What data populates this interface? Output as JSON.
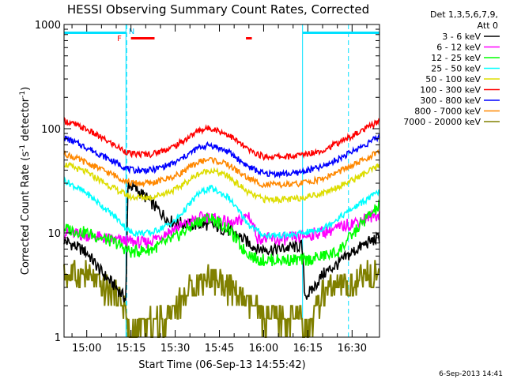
{
  "chart_data": {
    "type": "line",
    "title": "HESSI Observing Summary Count Rates, Corrected",
    "xlabel": "Start Time (06-Sep-13 14:55:42)",
    "ylabel_main": "Corrected Count Rate (s",
    "ylabel_sup1": "-1",
    "ylabel_mid": " detector",
    "ylabel_sup2": "-1",
    "ylabel_end": ")",
    "xlim_minutes": [
      -7.7,
      99.3
    ],
    "ylim": [
      1,
      1000
    ],
    "y_scale": "log",
    "x_ticks": [
      {
        "minute": 0,
        "label": "15:00"
      },
      {
        "minute": 15,
        "label": "15:15"
      },
      {
        "minute": 30,
        "label": "15:30"
      },
      {
        "minute": 45,
        "label": "15:45"
      },
      {
        "minute": 60,
        "label": "16:00"
      },
      {
        "minute": 75,
        "label": "16:15"
      },
      {
        "minute": 90,
        "label": "16:30"
      }
    ],
    "y_ticks": [
      {
        "value": 1,
        "label": "1"
      },
      {
        "value": 10,
        "label": "10"
      },
      {
        "value": 100,
        "label": "100"
      },
      {
        "value": 1000,
        "label": "1000"
      }
    ],
    "legend_header": [
      "Det 1,3,5,6,7,9,",
      "Att 0"
    ],
    "legend_position": "right",
    "series": [
      {
        "name": "3 - 6 keV",
        "color": "#000000",
        "x": [
          -7.7,
          0,
          5,
          10,
          13.3,
          14,
          20,
          28,
          35,
          42,
          50,
          58,
          65,
          73,
          74,
          76,
          80,
          85,
          90,
          95,
          99.3
        ],
        "y": [
          8.5,
          6.5,
          4.2,
          3.0,
          2.3,
          30,
          22,
          13,
          12,
          12,
          10,
          7,
          7,
          7.5,
          2.5,
          2.7,
          4,
          5,
          6.5,
          8,
          9
        ]
      },
      {
        "name": "6 - 12 keV",
        "color": "#ff00ff",
        "x": [
          -7.7,
          0,
          10,
          20,
          30,
          40,
          50,
          55,
          58,
          65,
          75,
          85,
          95,
          99.3
        ],
        "y": [
          10,
          9.5,
          8.5,
          8,
          11,
          14.5,
          12,
          15,
          9,
          8.5,
          9.5,
          11,
          14,
          15
        ]
      },
      {
        "name": "12 - 25 keV",
        "color": "#00ff00",
        "x": [
          -7.7,
          0,
          10,
          15,
          22,
          30,
          38,
          42,
          48,
          53,
          58,
          65,
          75,
          85,
          95,
          99.3
        ],
        "y": [
          11,
          10,
          8,
          6.5,
          7,
          9,
          13,
          14,
          11,
          7,
          5.5,
          5.5,
          5.5,
          6.5,
          14,
          18
        ]
      },
      {
        "name": "25 - 50 keV",
        "color": "#00ffff",
        "x": [
          -7.7,
          0,
          10,
          15,
          22,
          30,
          38,
          42,
          48,
          55,
          60,
          70,
          80,
          90,
          99.3
        ],
        "y": [
          32,
          24,
          14,
          10,
          10,
          13,
          24,
          27,
          22,
          12,
          9.5,
          9.5,
          11,
          17,
          25
        ]
      },
      {
        "name": "50 - 100 keV",
        "color": "#dddd00",
        "x": [
          -7.7,
          0,
          10,
          15,
          22,
          30,
          38,
          42,
          48,
          55,
          60,
          70,
          80,
          90,
          99.3
        ],
        "y": [
          46,
          38,
          26,
          22,
          22,
          26,
          37,
          40,
          35,
          24,
          21,
          21,
          24,
          32,
          44
        ]
      },
      {
        "name": "100 - 300 keV",
        "color": "#ff0000",
        "x": [
          -7.7,
          0,
          10,
          15,
          22,
          30,
          38,
          42,
          48,
          55,
          60,
          70,
          80,
          90,
          99.3
        ],
        "y": [
          120,
          98,
          68,
          57,
          57,
          68,
          96,
          102,
          88,
          62,
          54,
          54,
          62,
          85,
          118
        ]
      },
      {
        "name": "300 - 800 keV",
        "color": "#0000ff",
        "x": [
          -7.7,
          0,
          10,
          15,
          22,
          30,
          38,
          42,
          48,
          55,
          60,
          70,
          80,
          90,
          99.3
        ],
        "y": [
          82,
          66,
          47,
          40,
          40,
          47,
          66,
          70,
          60,
          43,
          37,
          37,
          43,
          60,
          84
        ]
      },
      {
        "name": "800 - 7000 keV",
        "color": "#ff8800",
        "x": [
          -7.7,
          0,
          10,
          15,
          22,
          30,
          38,
          42,
          48,
          55,
          60,
          70,
          80,
          90,
          99.3
        ],
        "y": [
          58,
          47,
          35,
          30,
          30,
          35,
          48,
          51,
          45,
          33,
          29,
          29,
          33,
          44,
          60
        ]
      },
      {
        "name": "7000 - 20000 keV",
        "color": "#808000",
        "x": [
          -7.7,
          0,
          5,
          10,
          13.3,
          14,
          20,
          25,
          30,
          38,
          42,
          48,
          55,
          60,
          68,
          73,
          74,
          80,
          85,
          90,
          95,
          99.3
        ],
        "y": [
          4,
          4,
          3,
          2.5,
          2,
          1,
          1.3,
          1.4,
          2,
          3.5,
          3.8,
          3,
          2,
          1.6,
          1.5,
          1.5,
          1,
          2.5,
          3,
          3,
          4,
          4.5
        ]
      }
    ],
    "ticks_text": {
      "F": "F",
      "N": "N"
    },
    "night_intervals_minutes": [
      [
        -7.7,
        13.3
      ],
      [
        73.2,
        99.3
      ]
    ],
    "flare_intervals_minutes": [
      [
        15.0,
        23.0
      ],
      [
        54.0,
        56.0
      ]
    ],
    "flare_marker_minute": 13.5,
    "saa_marker_minute": 15.5,
    "attenuator_lines_minutes": [
      13.3,
      73.2
    ],
    "dashed_lines_minutes": [
      13.3,
      88.5
    ],
    "timestamp": "6-Sep-2013 14:41"
  }
}
